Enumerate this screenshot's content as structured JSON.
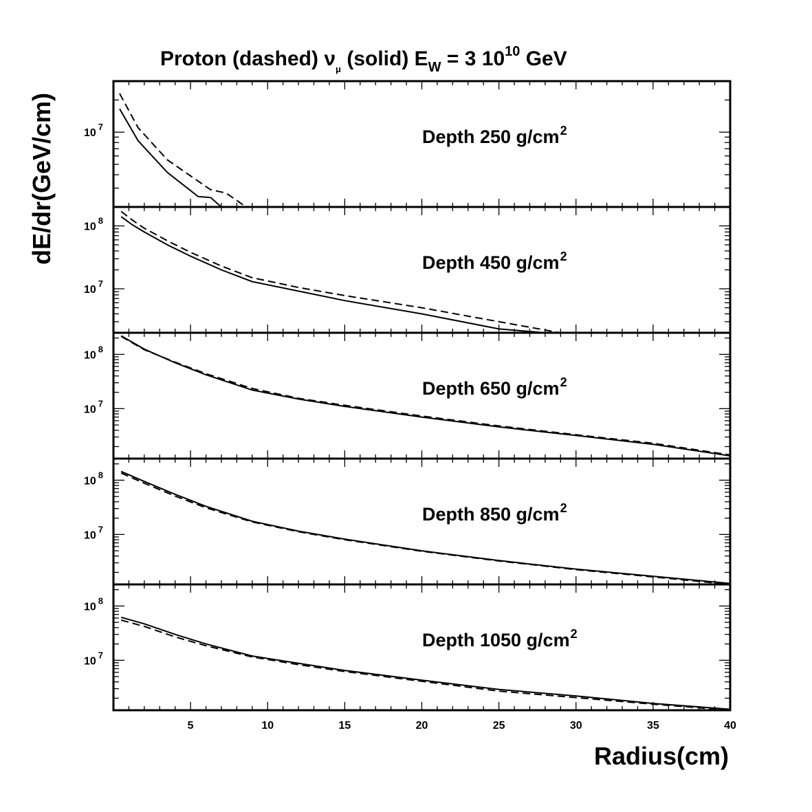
{
  "title": {
    "prefix": "Proton (dashed) ",
    "nu": "ν",
    "mu": "μ",
    "middle": " (solid) E",
    "w": "W",
    "eq": " = 3 10",
    "exp": "10",
    "suffix": " GeV"
  },
  "chart_data": {
    "type": "line",
    "xlabel": "Radius(cm)",
    "ylabel": "dE/dr(GeV/cm)",
    "xlim": [
      0,
      40
    ],
    "x_ticks": [
      "5",
      "10",
      "15",
      "20",
      "25",
      "30",
      "35",
      "40"
    ],
    "y_scale": "log",
    "panels": [
      {
        "label_text": "Depth 250 g/cm",
        "label_sup": "2",
        "ylim": [
          2000000,
          30000000
        ],
        "y_ticks": [
          {
            "base": "10",
            "exp": "7",
            "value": 10000000
          }
        ],
        "series": [
          {
            "style": "solid",
            "x": [
              0.4,
              1.6,
              3.5,
              5.5,
              6.3,
              7.0
            ],
            "y": [
              16500000,
              8300000,
              4200000,
              2500000,
              2450000,
              2000000
            ]
          },
          {
            "style": "dashed",
            "x": [
              0.4,
              1.6,
              3.5,
              6.3,
              7.3,
              8.0,
              8.6
            ],
            "y": [
              23000000,
              11000000,
              5500000,
              2900000,
              2700000,
              2300000,
              2000000
            ]
          }
        ]
      },
      {
        "label_text": "Depth 450 g/cm",
        "label_sup": "2",
        "ylim": [
          2000000,
          200000000
        ],
        "y_ticks": [
          {
            "base": "10",
            "exp": "8",
            "value": 100000000
          },
          {
            "base": "10",
            "exp": "7",
            "value": 10000000
          }
        ],
        "series": [
          {
            "style": "solid",
            "x": [
              0.5,
              1.2,
              2.0,
              3.5,
              5.0,
              7.0,
              9.0,
              12.0,
              15.0,
              20.0,
              25.0,
              28.0
            ],
            "y": [
              140000000,
              105000000,
              80000000,
              50000000,
              33000000,
              20000000,
              13000000,
              9200000,
              6500000,
              4000000,
              2300000,
              2000000
            ]
          },
          {
            "style": "dashed",
            "x": [
              0.5,
              1.2,
              2.0,
              3.5,
              5.0,
              7.0,
              9.0,
              12.0,
              15.0,
              20.0,
              25.0,
              29.0
            ],
            "y": [
              170000000,
              125000000,
              92000000,
              58000000,
              38000000,
              23000000,
              15000000,
              10500000,
              7800000,
              5000000,
              3000000,
              2000000
            ]
          }
        ]
      },
      {
        "label_text": "Depth 650 g/cm",
        "label_sup": "2",
        "ylim": [
          1200000,
          250000000
        ],
        "y_ticks": [
          {
            "base": "10",
            "exp": "8",
            "value": 100000000
          },
          {
            "base": "10",
            "exp": "7",
            "value": 10000000
          }
        ],
        "series": [
          {
            "style": "solid",
            "x": [
              0.5,
              2.0,
              4.0,
              6.0,
              9.0,
              12.0,
              15.0,
              20.0,
              25.0,
              30.0,
              35.0,
              40.0
            ],
            "y": [
              220000000,
              125000000,
              70000000,
              42000000,
              22000000,
              15000000,
              11000000,
              7000000,
              4600000,
              3200000,
              2200000,
              1350000
            ]
          },
          {
            "style": "dashed",
            "x": [
              0.5,
              2.0,
              4.0,
              6.0,
              9.0,
              12.0,
              15.0,
              20.0,
              25.0,
              30.0,
              35.0,
              40.0
            ],
            "y": [
              215000000,
              122000000,
              72000000,
              44000000,
              23500000,
              15500000,
              11500000,
              7300000,
              4800000,
              3300000,
              2300000,
              1400000
            ]
          }
        ]
      },
      {
        "label_text": "Depth 850 g/cm",
        "label_sup": "2",
        "ylim": [
          1200000,
          250000000
        ],
        "y_ticks": [
          {
            "base": "10",
            "exp": "8",
            "value": 100000000
          },
          {
            "base": "10",
            "exp": "7",
            "value": 10000000
          }
        ],
        "series": [
          {
            "style": "solid",
            "x": [
              0.5,
              2.0,
              4.0,
              6.0,
              9.0,
              12.0,
              15.0,
              20.0,
              25.0,
              30.0,
              35.0,
              40.0
            ],
            "y": [
              145000000,
              95000000,
              55000000,
              33000000,
              17500000,
              11500000,
              8200000,
              5000000,
              3300000,
              2300000,
              1700000,
              1250000
            ]
          },
          {
            "style": "dashed",
            "x": [
              0.5,
              2.0,
              4.0,
              6.0,
              9.0,
              12.0,
              15.0,
              20.0,
              25.0,
              30.0,
              35.0,
              40.0
            ],
            "y": [
              135000000,
              88000000,
              51000000,
              31000000,
              17000000,
              11200000,
              8000000,
              4900000,
              3250000,
              2250000,
              1650000,
              1200000
            ]
          }
        ]
      },
      {
        "label_text": "Depth 1050 g/cm",
        "label_sup": "2",
        "ylim": [
          1200000,
          250000000
        ],
        "y_ticks": [
          {
            "base": "10",
            "exp": "8",
            "value": 100000000
          },
          {
            "base": "10",
            "exp": "7",
            "value": 10000000
          }
        ],
        "series": [
          {
            "style": "solid",
            "x": [
              0.5,
              2.0,
              4.0,
              6.0,
              9.0,
              12.0,
              15.0,
              20.0,
              25.0,
              30.0,
              35.0,
              40.0
            ],
            "y": [
              62000000,
              47000000,
              30000000,
              20000000,
              12000000,
              8800000,
              6500000,
              4300000,
              2900000,
              2200000,
              1600000,
              1250000
            ]
          },
          {
            "style": "dashed",
            "x": [
              0.5,
              2.0,
              4.0,
              6.0,
              9.0,
              12.0,
              15.0,
              20.0,
              25.0,
              30.0,
              35.0,
              40.0
            ],
            "y": [
              55000000,
              42000000,
              27000000,
              18500000,
              11500000,
              8300000,
              6200000,
              4100000,
              2700000,
              2050000,
              1550000,
              1200000
            ]
          }
        ]
      }
    ]
  }
}
